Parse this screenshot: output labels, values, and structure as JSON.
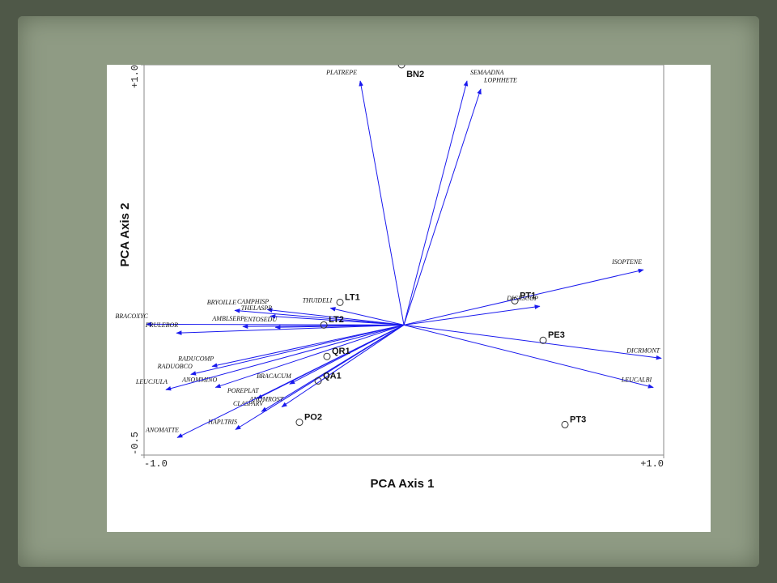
{
  "chart_data": {
    "type": "biplot",
    "x_label": "PCA Axis 1",
    "y_label": "PCA Axis 2",
    "xlim": [
      -1,
      1
    ],
    "ylim": [
      -0.5,
      1
    ],
    "xticks": [
      {
        "value": -1,
        "label": "-1.0"
      },
      {
        "value": 1,
        "label": "+1.0"
      }
    ],
    "yticks": [
      {
        "value": -0.5,
        "label": "-0.5"
      },
      {
        "value": 1,
        "label": "+1.0"
      }
    ],
    "vector_color": "#1a1aee",
    "vectors": [
      {
        "name": "PLATREPE",
        "x": -0.168,
        "y": 0.938
      },
      {
        "name": "SEMAADNA",
        "x": 0.243,
        "y": 0.938
      },
      {
        "name": "LOPHHETE",
        "x": 0.296,
        "y": 0.907
      },
      {
        "name": "ISOPTENE",
        "x": 0.922,
        "y": 0.212
      },
      {
        "name": "DICRSCOP",
        "x": 0.523,
        "y": 0.072
      },
      {
        "name": "DICRMONT",
        "x": 0.991,
        "y": -0.128
      },
      {
        "name": "LEUCALBI",
        "x": 0.96,
        "y": -0.24
      },
      {
        "name": "THUIDELI",
        "x": -0.283,
        "y": 0.065
      },
      {
        "name": "CAMPHISP",
        "x": -0.526,
        "y": 0.059
      },
      {
        "name": "BRYOILLE",
        "x": -0.651,
        "y": 0.056
      },
      {
        "name": "THELASPR",
        "x": -0.514,
        "y": 0.034
      },
      {
        "name": "BRACOXYC",
        "x": -0.991,
        "y": 0.003
      },
      {
        "name": "AMBLSERP",
        "x": -0.62,
        "y": -0.006
      },
      {
        "name": "FRULEBOR",
        "x": -0.875,
        "y": -0.031
      },
      {
        "name": "ENTOSEDU",
        "x": -0.495,
        "y": -0.009
      },
      {
        "name": "RADUCOMP",
        "x": -0.738,
        "y": -0.159
      },
      {
        "name": "RADUOBCO",
        "x": -0.82,
        "y": -0.19
      },
      {
        "name": "ANOMMINO",
        "x": -0.725,
        "y": -0.24
      },
      {
        "name": "LEUCJULA",
        "x": -0.916,
        "y": -0.249
      },
      {
        "name": "BRACACUM",
        "x": -0.44,
        "y": -0.227
      },
      {
        "name": "POREPLAT",
        "x": -0.565,
        "y": -0.283
      },
      {
        "name": "CLASPARV",
        "x": -0.548,
        "y": -0.333
      },
      {
        "name": "ANOMROST",
        "x": -0.47,
        "y": -0.315
      },
      {
        "name": "HAPLTRIS",
        "x": -0.648,
        "y": -0.402
      },
      {
        "name": "ANOMATTE",
        "x": -0.872,
        "y": -0.433
      }
    ],
    "sites": [
      {
        "name": "BN2",
        "x": -0.009,
        "y": 1.0
      },
      {
        "name": "LT1",
        "x": -0.246,
        "y": 0.087
      },
      {
        "name": "LT2",
        "x": -0.308,
        "y": 0.0
      },
      {
        "name": "QR1",
        "x": -0.296,
        "y": -0.121
      },
      {
        "name": "QA1",
        "x": -0.33,
        "y": -0.215
      },
      {
        "name": "PO2",
        "x": -0.402,
        "y": -0.374
      },
      {
        "name": "PT1",
        "x": 0.427,
        "y": 0.093
      },
      {
        "name": "PE3",
        "x": 0.536,
        "y": -0.059
      },
      {
        "name": "PT3",
        "x": 0.62,
        "y": -0.383
      }
    ]
  }
}
